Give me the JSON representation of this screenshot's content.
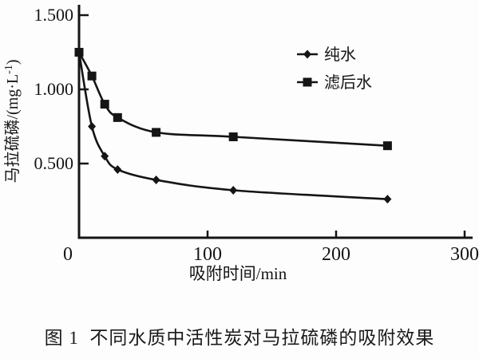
{
  "figure": {
    "caption": "图 1  不同水质中活性炭对马拉硫磷的吸附效果"
  },
  "chart_data": {
    "type": "line",
    "title": "",
    "xlabel": "吸附时间/min",
    "ylabel": "马拉硫磷/(mg·L⁻¹)",
    "ylabel_parts": {
      "prefix": "马拉硫磷/(mg·L",
      "superscript": "-1",
      "suffix": ")"
    },
    "xlim": [
      0,
      300
    ],
    "ylim": [
      0,
      1.55
    ],
    "x_ticks": [
      0,
      100,
      200,
      300
    ],
    "y_ticks": [
      {
        "value": 0.5,
        "label": "0.500"
      },
      {
        "value": 1.0,
        "label": "1.000"
      },
      {
        "value": 1.5,
        "label": "1.500"
      }
    ],
    "grid": false,
    "legend_position": "top-right",
    "x": [
      0,
      10,
      20,
      30,
      60,
      120,
      240
    ],
    "series": [
      {
        "name": "纯水",
        "marker": "diamond",
        "values": [
          1.25,
          0.75,
          0.55,
          0.46,
          0.39,
          0.32,
          0.26
        ]
      },
      {
        "name": "滤后水",
        "marker": "square",
        "values": [
          1.25,
          1.09,
          0.9,
          0.81,
          0.71,
          0.68,
          0.62
        ]
      }
    ],
    "colors": {
      "ink": "#151515",
      "background": "#ffffff"
    }
  }
}
